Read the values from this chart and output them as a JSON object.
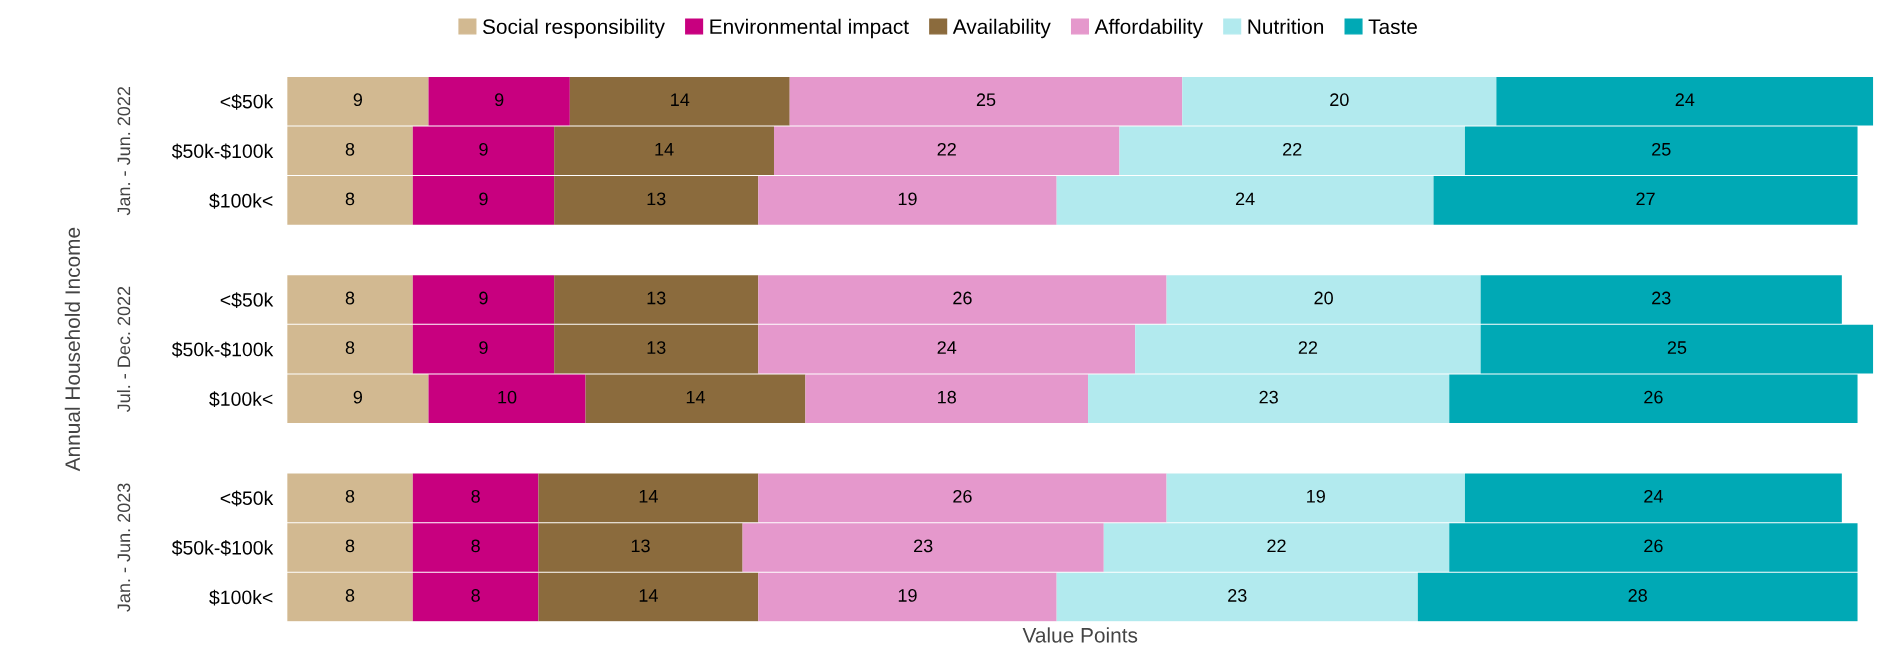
{
  "chart_data": {
    "type": "bar",
    "orientation": "horizontal",
    "stacked": true,
    "data_labels": true,
    "legend": "top",
    "grid": false,
    "tick_labels": "y",
    "xlabel": "Value Points",
    "ylabel": "Annual Household Income",
    "annotations": [
      "Jan. - Jun. 2022",
      "Jul. - Dec. 2022",
      "Jan. - Jun. 2023"
    ],
    "xlim": [
      0,
      101
    ],
    "categories": [
      "<$50k",
      "$50k-$100k",
      "$100k<",
      null,
      "<$50k",
      "$50k-$100k",
      "$100k<",
      null,
      "<$50k",
      "$50k-$100k",
      "$100k<"
    ],
    "series": [
      {
        "name": "Social responsibility",
        "color": "#d2b991",
        "values": [
          9,
          8,
          8,
          null,
          8,
          8,
          9,
          null,
          8,
          8,
          8
        ]
      },
      {
        "name": "Environmental impact",
        "color": "#c8007f",
        "values": [
          9,
          9,
          9,
          null,
          9,
          9,
          10,
          null,
          8,
          8,
          8
        ]
      },
      {
        "name": "Availability",
        "color": "#8b6b3d",
        "values": [
          14,
          14,
          13,
          null,
          13,
          13,
          14,
          null,
          14,
          13,
          14
        ]
      },
      {
        "name": "Affordability",
        "color": "#e598cc",
        "values": [
          25,
          22,
          19,
          null,
          26,
          24,
          18,
          null,
          26,
          23,
          19
        ]
      },
      {
        "name": "Nutrition",
        "color": "#b2eaee",
        "values": [
          20,
          22,
          24,
          null,
          20,
          22,
          23,
          null,
          19,
          22,
          23
        ]
      },
      {
        "name": "Taste",
        "color": "#00a9b5",
        "values": [
          24,
          25,
          27,
          null,
          23,
          25,
          26,
          null,
          24,
          26,
          28
        ]
      }
    ]
  }
}
